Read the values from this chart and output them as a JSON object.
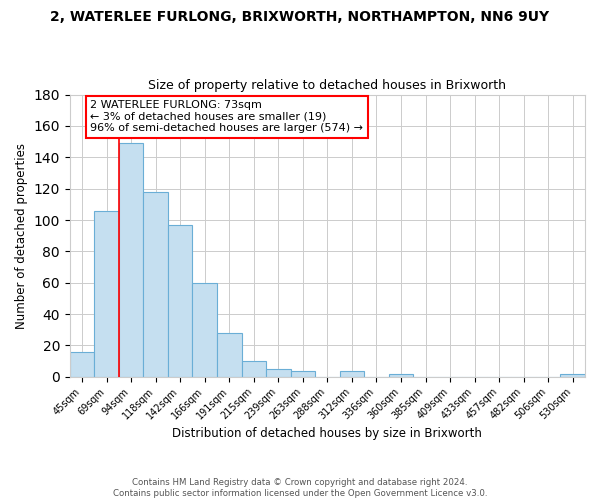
{
  "title_line1": "2, WATERLEE FURLONG, BRIXWORTH, NORTHAMPTON, NN6 9UY",
  "title_line2": "Size of property relative to detached houses in Brixworth",
  "xlabel": "Distribution of detached houses by size in Brixworth",
  "ylabel": "Number of detached properties",
  "bar_labels": [
    "45sqm",
    "69sqm",
    "94sqm",
    "118sqm",
    "142sqm",
    "166sqm",
    "191sqm",
    "215sqm",
    "239sqm",
    "263sqm",
    "288sqm",
    "312sqm",
    "336sqm",
    "360sqm",
    "385sqm",
    "409sqm",
    "433sqm",
    "457sqm",
    "482sqm",
    "506sqm",
    "530sqm"
  ],
  "bar_values": [
    16,
    106,
    149,
    118,
    97,
    60,
    28,
    10,
    5,
    4,
    0,
    4,
    0,
    2,
    0,
    0,
    0,
    0,
    0,
    0,
    2
  ],
  "bar_color": "#c5dff0",
  "bar_edge_color": "#6aaed6",
  "ylim": [
    0,
    180
  ],
  "yticks": [
    0,
    20,
    40,
    60,
    80,
    100,
    120,
    140,
    160,
    180
  ],
  "red_line_x": 1.5,
  "annotation_text_line1": "2 WATERLEE FURLONG: 73sqm",
  "annotation_text_line2": "← 3% of detached houses are smaller (19)",
  "annotation_text_line3": "96% of semi-detached houses are larger (574) →",
  "footer_line1": "Contains HM Land Registry data © Crown copyright and database right 2024.",
  "footer_line2": "Contains public sector information licensed under the Open Government Licence v3.0.",
  "background_color": "#ffffff",
  "grid_color": "#cccccc"
}
